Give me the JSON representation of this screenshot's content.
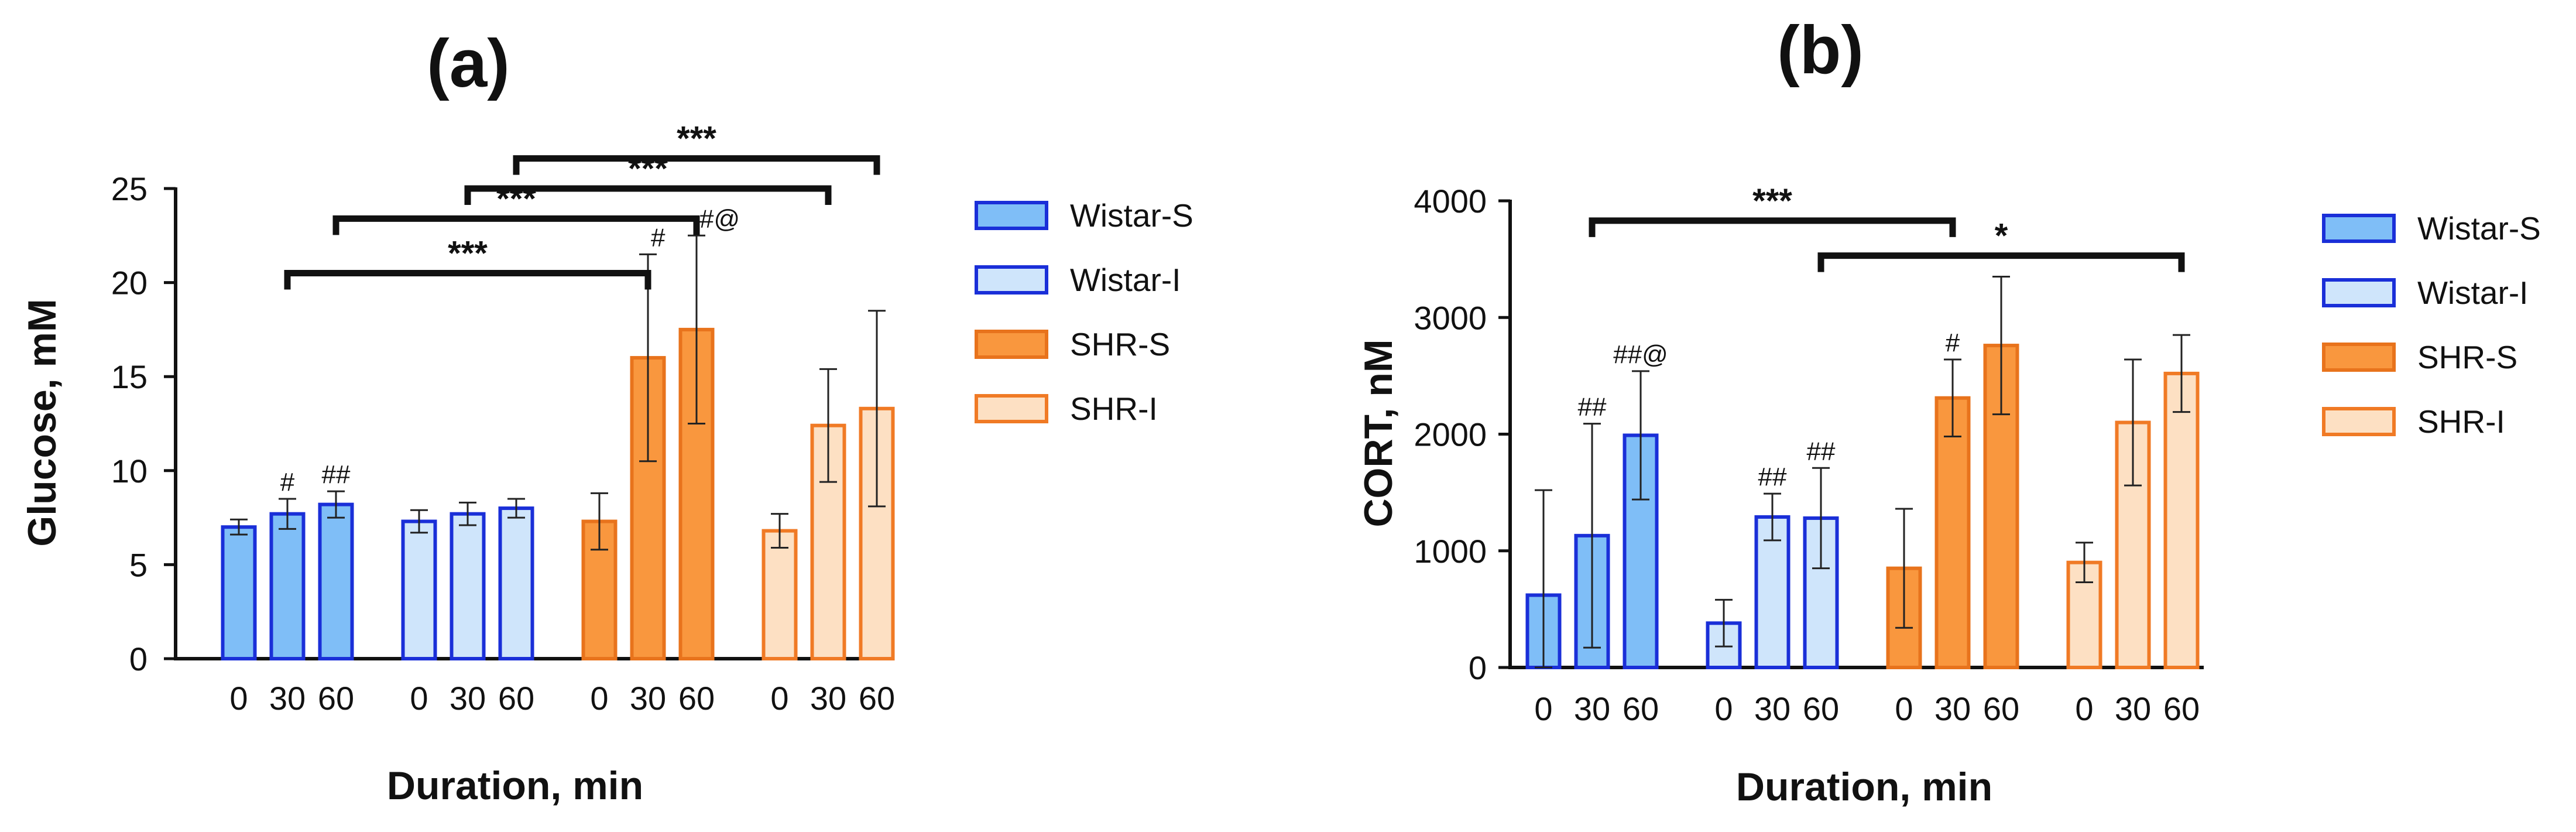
{
  "colors": {
    "Wistar-S": {
      "fill": "#7fbef7",
      "stroke": "#1a2fd8"
    },
    "Wistar-I": {
      "fill": "#cfe5fb",
      "stroke": "#1a2fd8"
    },
    "SHR-S": {
      "fill": "#f9973e",
      "stroke": "#e8731c"
    },
    "SHR-I": {
      "fill": "#fde0c3",
      "stroke": "#f07a25"
    }
  },
  "chart_data": [
    {
      "type": "bar",
      "panel": "(a)",
      "xlabel": "Duration, min",
      "ylabel": "Glucose, mM",
      "ylim": [
        0,
        25
      ],
      "yticks": [
        0,
        5,
        10,
        15,
        20,
        25
      ],
      "categories": [
        "0",
        "30",
        "60"
      ],
      "legend": [
        "Wistar-S",
        "Wistar-I",
        "SHR-S",
        "SHR-I"
      ],
      "series": [
        {
          "name": "Wistar-S",
          "values": [
            7.0,
            7.7,
            8.2
          ],
          "errors": [
            0.4,
            0.8,
            0.7
          ],
          "annotations": [
            "",
            "#",
            "##"
          ]
        },
        {
          "name": "Wistar-I",
          "values": [
            7.3,
            7.7,
            8.0
          ],
          "errors": [
            0.6,
            0.6,
            0.5
          ],
          "annotations": [
            "",
            "",
            ""
          ]
        },
        {
          "name": "SHR-S",
          "values": [
            7.3,
            16.0,
            17.5
          ],
          "errors": [
            1.5,
            5.5,
            5.0
          ],
          "annotations": [
            "",
            "#",
            "#@"
          ]
        },
        {
          "name": "SHR-I",
          "values": [
            6.8,
            12.4,
            13.3
          ],
          "errors": [
            0.9,
            3.0,
            5.2
          ],
          "annotations": [
            "",
            "",
            ""
          ]
        }
      ],
      "significance": [
        {
          "from": [
            "Wistar-S",
            "30"
          ],
          "to": [
            "SHR-S",
            "30"
          ],
          "label": "***",
          "level": 20.5
        },
        {
          "from": [
            "Wistar-S",
            "60"
          ],
          "to": [
            "SHR-S",
            "60"
          ],
          "label": "***",
          "level": 23.4
        },
        {
          "from": [
            "Wistar-I",
            "30"
          ],
          "to": [
            "SHR-I",
            "30"
          ],
          "label": "***",
          "level": 25.0
        },
        {
          "from": [
            "Wistar-I",
            "60"
          ],
          "to": [
            "SHR-I",
            "60"
          ],
          "label": "***",
          "level": 26.6
        }
      ]
    },
    {
      "type": "bar",
      "panel": "(b)",
      "xlabel": "Duration, min",
      "ylabel": "CORT, nM",
      "ylim": [
        0,
        4000
      ],
      "yticks": [
        0,
        1000,
        2000,
        3000,
        4000
      ],
      "categories": [
        "0",
        "30",
        "60"
      ],
      "legend": [
        "Wistar-S",
        "Wistar-I",
        "SHR-S",
        "SHR-I"
      ],
      "series": [
        {
          "name": "Wistar-S",
          "values": [
            620,
            1130,
            1990
          ],
          "errors": [
            900,
            960,
            550
          ],
          "annotations": [
            "",
            "##",
            "##@"
          ]
        },
        {
          "name": "Wistar-I",
          "values": [
            380,
            1290,
            1280
          ],
          "errors": [
            200,
            200,
            430
          ],
          "annotations": [
            "",
            "##",
            "##"
          ]
        },
        {
          "name": "SHR-S",
          "values": [
            850,
            2310,
            2760
          ],
          "errors": [
            510,
            330,
            590
          ],
          "annotations": [
            "",
            "#",
            ""
          ]
        },
        {
          "name": "SHR-I",
          "values": [
            900,
            2100,
            2520
          ],
          "errors": [
            170,
            540,
            330
          ],
          "annotations": [
            "",
            "",
            ""
          ]
        }
      ],
      "significance": [
        {
          "from": [
            "Wistar-S",
            "30"
          ],
          "to": [
            "SHR-S",
            "30"
          ],
          "label": "***",
          "level": 3830
        },
        {
          "from": [
            "Wistar-I",
            "60"
          ],
          "to": [
            "SHR-I",
            "60"
          ],
          "label": "*",
          "level": 3530
        }
      ]
    }
  ]
}
